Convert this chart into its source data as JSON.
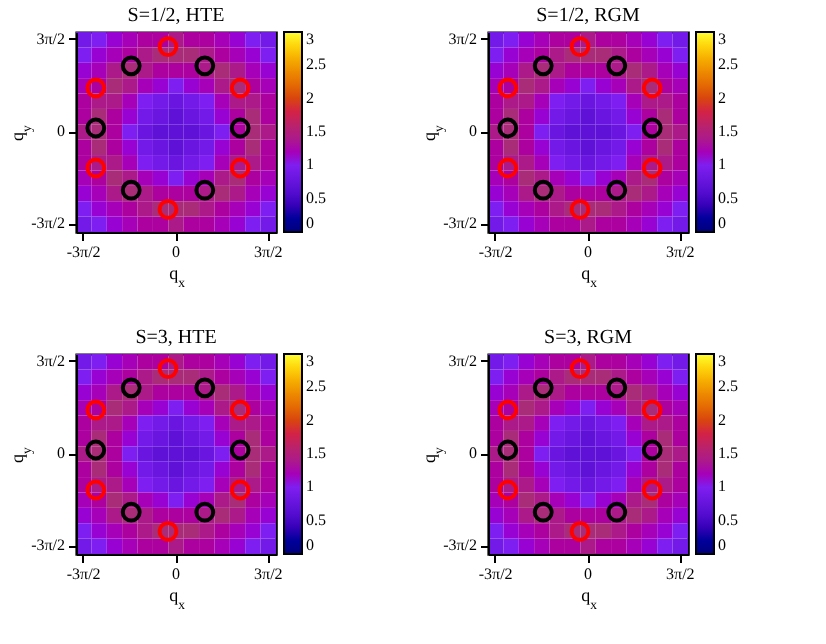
{
  "chart_data": [
    {
      "type": "heatmap",
      "title": "S=1/2, HTE",
      "xlabel": "q$_{x}$",
      "ylabel": "q$_{y}$",
      "categories": [
        "-3π/2",
        null,
        null,
        null,
        null,
        null,
        "0",
        null,
        null,
        null,
        null,
        null,
        "3π/2"
      ],
      "y_categories": [
        "3π/2",
        null,
        null,
        null,
        null,
        null,
        "0",
        null,
        null,
        null,
        null,
        null,
        "-3π/2"
      ],
      "clim": [
        0,
        3
      ],
      "cticks": [
        0,
        0.5,
        1,
        1.5,
        2,
        2.5,
        3
      ],
      "cells": [
        [
          0.9,
          1.0,
          1.1,
          1.2,
          1.3,
          1.3,
          1.4,
          1.3,
          1.3,
          1.2,
          1.1,
          1.0,
          0.9
        ],
        [
          1.0,
          1.1,
          1.2,
          1.3,
          1.4,
          1.5,
          1.5,
          1.5,
          1.4,
          1.3,
          1.2,
          1.1,
          1.0
        ],
        [
          1.1,
          1.2,
          1.4,
          1.5,
          1.4,
          1.3,
          1.3,
          1.3,
          1.4,
          1.5,
          1.4,
          1.2,
          1.1
        ],
        [
          1.2,
          1.3,
          1.5,
          1.4,
          1.2,
          1.1,
          1.0,
          1.1,
          1.2,
          1.4,
          1.5,
          1.3,
          1.2
        ],
        [
          1.3,
          1.4,
          1.4,
          1.2,
          1.0,
          0.9,
          0.8,
          0.9,
          1.0,
          1.2,
          1.4,
          1.4,
          1.3
        ],
        [
          1.3,
          1.5,
          1.3,
          1.1,
          0.9,
          0.8,
          0.7,
          0.8,
          0.9,
          1.1,
          1.3,
          1.5,
          1.3
        ],
        [
          1.4,
          1.5,
          1.3,
          1.0,
          0.8,
          0.7,
          0.7,
          0.7,
          0.8,
          1.0,
          1.3,
          1.5,
          1.4
        ],
        [
          1.3,
          1.5,
          1.3,
          1.1,
          0.9,
          0.8,
          0.7,
          0.8,
          0.9,
          1.1,
          1.3,
          1.5,
          1.3
        ],
        [
          1.3,
          1.4,
          1.4,
          1.2,
          1.0,
          0.9,
          0.8,
          0.9,
          1.0,
          1.2,
          1.4,
          1.4,
          1.3
        ],
        [
          1.2,
          1.3,
          1.5,
          1.4,
          1.2,
          1.1,
          1.0,
          1.1,
          1.2,
          1.4,
          1.5,
          1.3,
          1.2
        ],
        [
          1.1,
          1.2,
          1.4,
          1.5,
          1.4,
          1.3,
          1.3,
          1.3,
          1.4,
          1.5,
          1.4,
          1.2,
          1.1
        ],
        [
          1.0,
          1.1,
          1.2,
          1.3,
          1.4,
          1.5,
          1.5,
          1.5,
          1.4,
          1.3,
          1.2,
          1.1,
          1.0
        ],
        [
          0.9,
          1.0,
          1.1,
          1.2,
          1.3,
          1.3,
          1.4,
          1.3,
          1.3,
          1.2,
          1.1,
          1.0,
          0.9
        ]
      ]
    },
    {
      "type": "heatmap",
      "title": "S=1/2, RGM",
      "xlabel": "q$_{x}$",
      "ylabel": "q$_{y}$",
      "categories": [
        "-3π/2",
        null,
        null,
        null,
        null,
        null,
        "0",
        null,
        null,
        null,
        null,
        null,
        "3π/2"
      ],
      "y_categories": [
        "3π/2",
        null,
        null,
        null,
        null,
        null,
        "0",
        null,
        null,
        null,
        null,
        null,
        "-3π/2"
      ],
      "clim": [
        0,
        3
      ],
      "cticks": [
        0,
        0.5,
        1,
        1.5,
        2,
        2.5,
        3
      ],
      "cells": [
        [
          0.9,
          1.0,
          1.1,
          1.2,
          1.3,
          1.3,
          1.4,
          1.3,
          1.3,
          1.2,
          1.1,
          1.0,
          0.9
        ],
        [
          1.0,
          1.1,
          1.2,
          1.3,
          1.4,
          1.5,
          1.5,
          1.5,
          1.4,
          1.3,
          1.2,
          1.1,
          1.0
        ],
        [
          1.1,
          1.2,
          1.4,
          1.5,
          1.4,
          1.3,
          1.3,
          1.3,
          1.4,
          1.5,
          1.4,
          1.2,
          1.1
        ],
        [
          1.2,
          1.3,
          1.5,
          1.4,
          1.2,
          1.1,
          1.0,
          1.1,
          1.2,
          1.4,
          1.5,
          1.3,
          1.2
        ],
        [
          1.3,
          1.4,
          1.4,
          1.2,
          1.0,
          0.9,
          0.8,
          0.9,
          1.0,
          1.2,
          1.4,
          1.4,
          1.3
        ],
        [
          1.3,
          1.5,
          1.3,
          1.1,
          0.9,
          0.8,
          0.7,
          0.8,
          0.9,
          1.1,
          1.3,
          1.5,
          1.3
        ],
        [
          1.4,
          1.5,
          1.3,
          1.0,
          0.8,
          0.7,
          0.7,
          0.7,
          0.8,
          1.0,
          1.3,
          1.5,
          1.4
        ],
        [
          1.3,
          1.5,
          1.3,
          1.1,
          0.9,
          0.8,
          0.7,
          0.8,
          0.9,
          1.1,
          1.3,
          1.5,
          1.3
        ],
        [
          1.3,
          1.4,
          1.4,
          1.2,
          1.0,
          0.9,
          0.8,
          0.9,
          1.0,
          1.2,
          1.4,
          1.4,
          1.3
        ],
        [
          1.2,
          1.3,
          1.5,
          1.4,
          1.2,
          1.1,
          1.0,
          1.1,
          1.2,
          1.4,
          1.5,
          1.3,
          1.2
        ],
        [
          1.1,
          1.2,
          1.4,
          1.5,
          1.4,
          1.3,
          1.3,
          1.3,
          1.4,
          1.5,
          1.4,
          1.2,
          1.1
        ],
        [
          1.0,
          1.1,
          1.2,
          1.3,
          1.4,
          1.5,
          1.5,
          1.5,
          1.4,
          1.3,
          1.2,
          1.1,
          1.0
        ],
        [
          0.9,
          1.0,
          1.1,
          1.2,
          1.3,
          1.3,
          1.4,
          1.3,
          1.3,
          1.2,
          1.1,
          1.0,
          0.9
        ]
      ]
    },
    {
      "type": "heatmap",
      "title": "S=3, HTE",
      "xlabel": "q$_{x}$",
      "ylabel": "q$_{y}$",
      "categories": [
        "-3π/2",
        null,
        null,
        null,
        null,
        null,
        "0",
        null,
        null,
        null,
        null,
        null,
        "3π/2"
      ],
      "y_categories": [
        "3π/2",
        null,
        null,
        null,
        null,
        null,
        "0",
        null,
        null,
        null,
        null,
        null,
        "-3π/2"
      ],
      "clim": [
        0,
        3
      ],
      "cticks": [
        0,
        0.5,
        1,
        1.5,
        2,
        2.5,
        3
      ],
      "cells": [
        [
          0.9,
          1.0,
          1.1,
          1.2,
          1.3,
          1.3,
          1.4,
          1.3,
          1.3,
          1.2,
          1.1,
          1.0,
          0.9
        ],
        [
          1.0,
          1.1,
          1.2,
          1.3,
          1.4,
          1.5,
          1.5,
          1.5,
          1.4,
          1.3,
          1.2,
          1.1,
          1.0
        ],
        [
          1.1,
          1.2,
          1.4,
          1.5,
          1.4,
          1.3,
          1.3,
          1.3,
          1.4,
          1.5,
          1.4,
          1.2,
          1.1
        ],
        [
          1.2,
          1.3,
          1.5,
          1.4,
          1.2,
          1.1,
          1.0,
          1.1,
          1.2,
          1.4,
          1.5,
          1.3,
          1.2
        ],
        [
          1.3,
          1.4,
          1.4,
          1.2,
          1.0,
          0.9,
          0.8,
          0.9,
          1.0,
          1.2,
          1.4,
          1.4,
          1.3
        ],
        [
          1.3,
          1.5,
          1.3,
          1.1,
          0.9,
          0.8,
          0.7,
          0.8,
          0.9,
          1.1,
          1.3,
          1.5,
          1.3
        ],
        [
          1.4,
          1.5,
          1.3,
          1.0,
          0.8,
          0.7,
          0.7,
          0.7,
          0.8,
          1.0,
          1.3,
          1.5,
          1.4
        ],
        [
          1.3,
          1.5,
          1.3,
          1.1,
          0.9,
          0.8,
          0.7,
          0.8,
          0.9,
          1.1,
          1.3,
          1.5,
          1.3
        ],
        [
          1.3,
          1.4,
          1.4,
          1.2,
          1.0,
          0.9,
          0.8,
          0.9,
          1.0,
          1.2,
          1.4,
          1.4,
          1.3
        ],
        [
          1.2,
          1.3,
          1.5,
          1.4,
          1.2,
          1.1,
          1.0,
          1.1,
          1.2,
          1.4,
          1.5,
          1.3,
          1.2
        ],
        [
          1.1,
          1.2,
          1.4,
          1.5,
          1.4,
          1.3,
          1.3,
          1.3,
          1.4,
          1.5,
          1.4,
          1.2,
          1.1
        ],
        [
          1.0,
          1.1,
          1.2,
          1.3,
          1.4,
          1.5,
          1.5,
          1.5,
          1.4,
          1.3,
          1.2,
          1.1,
          1.0
        ],
        [
          0.9,
          1.0,
          1.1,
          1.2,
          1.3,
          1.3,
          1.4,
          1.3,
          1.3,
          1.2,
          1.1,
          1.0,
          0.9
        ]
      ]
    },
    {
      "type": "heatmap",
      "title": "S=3, RGM",
      "xlabel": "q$_{x}$",
      "ylabel": "q$_{y}$",
      "categories": [
        "-3π/2",
        null,
        null,
        null,
        null,
        null,
        "0",
        null,
        null,
        null,
        null,
        null,
        "3π/2"
      ],
      "y_categories": [
        "3π/2",
        null,
        null,
        null,
        null,
        null,
        "0",
        null,
        null,
        null,
        null,
        null,
        "-3π/2"
      ],
      "clim": [
        0,
        3
      ],
      "cticks": [
        0,
        0.5,
        1,
        1.5,
        2,
        2.5,
        3
      ],
      "cells": [
        [
          0.9,
          1.0,
          1.1,
          1.2,
          1.3,
          1.3,
          1.4,
          1.3,
          1.3,
          1.2,
          1.1,
          1.0,
          0.9
        ],
        [
          1.0,
          1.1,
          1.2,
          1.3,
          1.4,
          1.5,
          1.5,
          1.5,
          1.4,
          1.3,
          1.2,
          1.1,
          1.0
        ],
        [
          1.1,
          1.2,
          1.4,
          1.5,
          1.4,
          1.3,
          1.3,
          1.3,
          1.4,
          1.5,
          1.4,
          1.2,
          1.1
        ],
        [
          1.2,
          1.3,
          1.5,
          1.4,
          1.2,
          1.1,
          1.0,
          1.1,
          1.2,
          1.4,
          1.5,
          1.3,
          1.2
        ],
        [
          1.3,
          1.4,
          1.4,
          1.2,
          1.0,
          0.9,
          0.8,
          0.9,
          1.0,
          1.2,
          1.4,
          1.4,
          1.3
        ],
        [
          1.3,
          1.5,
          1.3,
          1.1,
          0.9,
          0.8,
          0.7,
          0.8,
          0.9,
          1.1,
          1.3,
          1.5,
          1.3
        ],
        [
          1.4,
          1.5,
          1.3,
          1.0,
          0.8,
          0.7,
          0.7,
          0.7,
          0.8,
          1.0,
          1.3,
          1.5,
          1.4
        ],
        [
          1.3,
          1.5,
          1.3,
          1.1,
          0.9,
          0.8,
          0.7,
          0.8,
          0.9,
          1.1,
          1.3,
          1.5,
          1.3
        ],
        [
          1.3,
          1.4,
          1.4,
          1.2,
          1.0,
          0.9,
          0.8,
          0.9,
          1.0,
          1.2,
          1.4,
          1.4,
          1.3
        ],
        [
          1.2,
          1.3,
          1.5,
          1.4,
          1.2,
          1.1,
          1.0,
          1.1,
          1.2,
          1.4,
          1.5,
          1.3,
          1.2
        ],
        [
          1.1,
          1.2,
          1.4,
          1.5,
          1.4,
          1.3,
          1.3,
          1.3,
          1.4,
          1.5,
          1.4,
          1.2,
          1.1
        ],
        [
          1.0,
          1.1,
          1.2,
          1.3,
          1.4,
          1.5,
          1.5,
          1.5,
          1.4,
          1.3,
          1.2,
          1.1,
          1.0
        ],
        [
          0.9,
          1.0,
          1.1,
          1.2,
          1.3,
          1.3,
          1.4,
          1.3,
          1.3,
          1.2,
          1.1,
          1.0,
          0.9
        ]
      ]
    }
  ]
}
